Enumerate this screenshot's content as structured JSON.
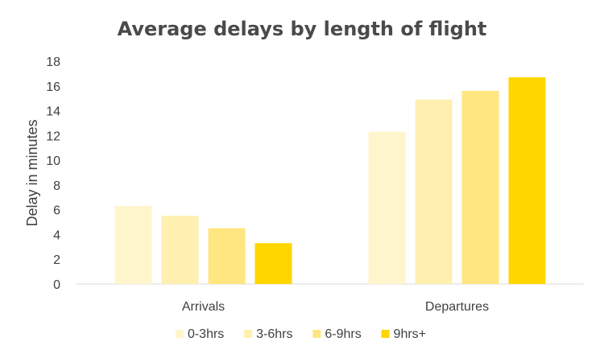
{
  "chart_data": {
    "type": "bar",
    "title": "Average delays by length of flight",
    "xlabel": "",
    "ylabel": "Delay in minutes",
    "ylim": [
      0,
      18
    ],
    "yticks": [
      0,
      2,
      4,
      6,
      8,
      10,
      12,
      14,
      16,
      18
    ],
    "grid": false,
    "legend_position": "bottom",
    "categories": [
      "Arrivals",
      "Departures"
    ],
    "series": [
      {
        "name": "0-3hrs",
        "color": "#fff5cc",
        "values": [
          6.3,
          12.3
        ]
      },
      {
        "name": "3-6hrs",
        "color": "#fff0b0",
        "values": [
          5.5,
          14.9
        ]
      },
      {
        "name": "6-9hrs",
        "color": "#ffe680",
        "values": [
          4.5,
          15.6
        ]
      },
      {
        "name": "9hrs+",
        "color": "#ffd600",
        "values": [
          3.3,
          16.7
        ]
      }
    ]
  }
}
